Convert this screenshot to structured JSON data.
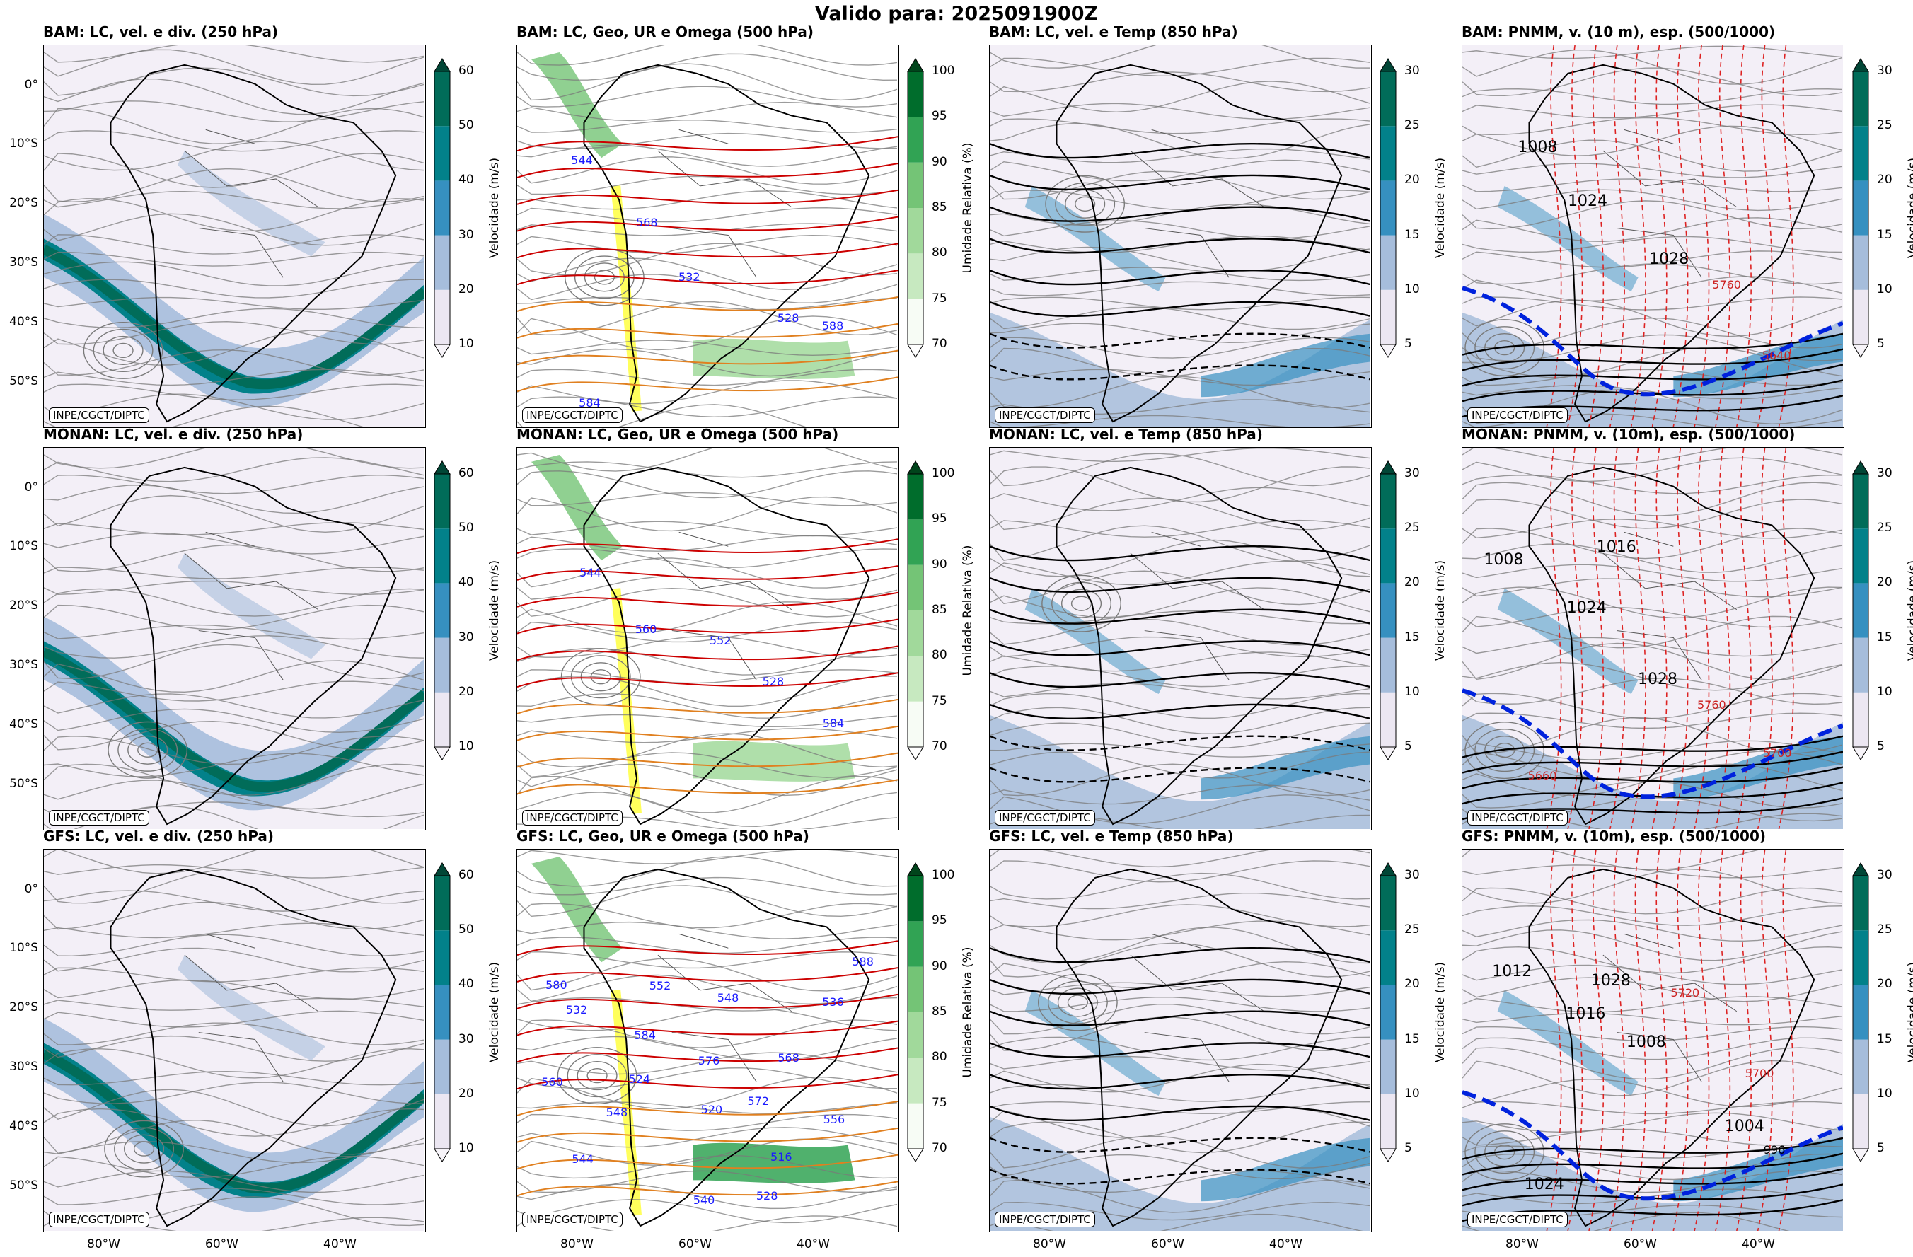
{
  "figure": {
    "title": "Valido para: 2025091900Z",
    "credit": "INPE/CGCT/DIPTC",
    "latitude_ticks": [
      "0°",
      "10°S",
      "20°S",
      "30°S",
      "40°S",
      "50°S"
    ],
    "longitude_ticks": [
      "80°W",
      "60°W",
      "40°W"
    ]
  },
  "columns": [
    {
      "id": "lc250",
      "titles": [
        "BAM: LC, vel. e div. (250 hPa)",
        "MONAN: LC, vel. e div. (250 hPa)",
        "GFS: LC, vel. e div. (250 hPa)"
      ],
      "colorbar": {
        "label": "Velocidade (m/s)",
        "ticks": [
          "10",
          "20",
          "30",
          "40",
          "50",
          "60"
        ],
        "colors": [
          "#ece7f2",
          "#a6bddb",
          "#3690c0",
          "#02818a",
          "#016c59"
        ],
        "extend_color_top": "#014636",
        "extend_color_bottom": "#f7f4f9"
      }
    },
    {
      "id": "geo500",
      "titles": [
        "BAM: LC, Geo, UR e Omega (500 hPa)",
        "MONAN: LC, Geo, UR e Omega (500 hPa)",
        "GFS: LC, Geo, UR e Omega (500 hPa)"
      ],
      "colorbar": {
        "label": "Umidade Relativa (%)",
        "ticks": [
          "70",
          "75",
          "80",
          "85",
          "90",
          "95",
          "100"
        ],
        "colors": [
          "#f7fcf5",
          "#c7e9c0",
          "#a1d99b",
          "#74c476",
          "#31a354",
          "#006d2c"
        ],
        "extend_color_top": "#00441b",
        "extend_color_bottom": "#ffffff"
      },
      "contour_labels": [
        [
          "544",
          "568",
          "532",
          "528",
          "588",
          "584"
        ],
        [
          "544",
          "560",
          "552",
          "528",
          "584"
        ],
        [
          "580",
          "584",
          "576",
          "572",
          "556",
          "544",
          "552",
          "548",
          "568",
          "560",
          "548",
          "540",
          "528",
          "536",
          "532",
          "524",
          "520",
          "516",
          "588"
        ]
      ]
    },
    {
      "id": "temp850",
      "titles": [
        "BAM: LC, vel. e Temp (850 hPa)",
        "MONAN: LC, vel. e Temp (850 hPa)",
        "GFS: LC, vel. e Temp (850 hPa)"
      ],
      "colorbar": {
        "label": "Velocidade (m/s)",
        "ticks": [
          "5",
          "10",
          "15",
          "20",
          "25",
          "30"
        ],
        "colors": [
          "#ece7f2",
          "#a6bddb",
          "#3690c0",
          "#02818a",
          "#016c59"
        ],
        "extend_color_top": "#014636",
        "extend_color_bottom": "#f7f4f9"
      }
    },
    {
      "id": "pnmm",
      "titles": [
        "BAM: PNMM, v. (10 m), esp. (500/1000)",
        "MONAN: PNMM, v. (10m), esp. (500/1000)",
        "GFS: PNMM, v. (10m), esp. (500/1000)"
      ],
      "colorbar": {
        "label": "Velocidade (m/s)",
        "ticks": [
          "5",
          "10",
          "15",
          "20",
          "25",
          "30"
        ],
        "colors": [
          "#ece7f2",
          "#a6bddb",
          "#3690c0",
          "#02818a",
          "#016c59"
        ],
        "extend_color_top": "#014636",
        "extend_color_bottom": "#f7f4f9"
      },
      "contour_labels": [
        [
          "1008",
          "1024",
          "1028",
          "5760",
          "5640"
        ],
        [
          "1008",
          "1024",
          "1028",
          "5760",
          "5700",
          "5660",
          "1016"
        ],
        [
          "1012",
          "1016",
          "1008",
          "1004",
          "996",
          "1024",
          "1028",
          "5720",
          "5700"
        ]
      ]
    }
  ]
}
